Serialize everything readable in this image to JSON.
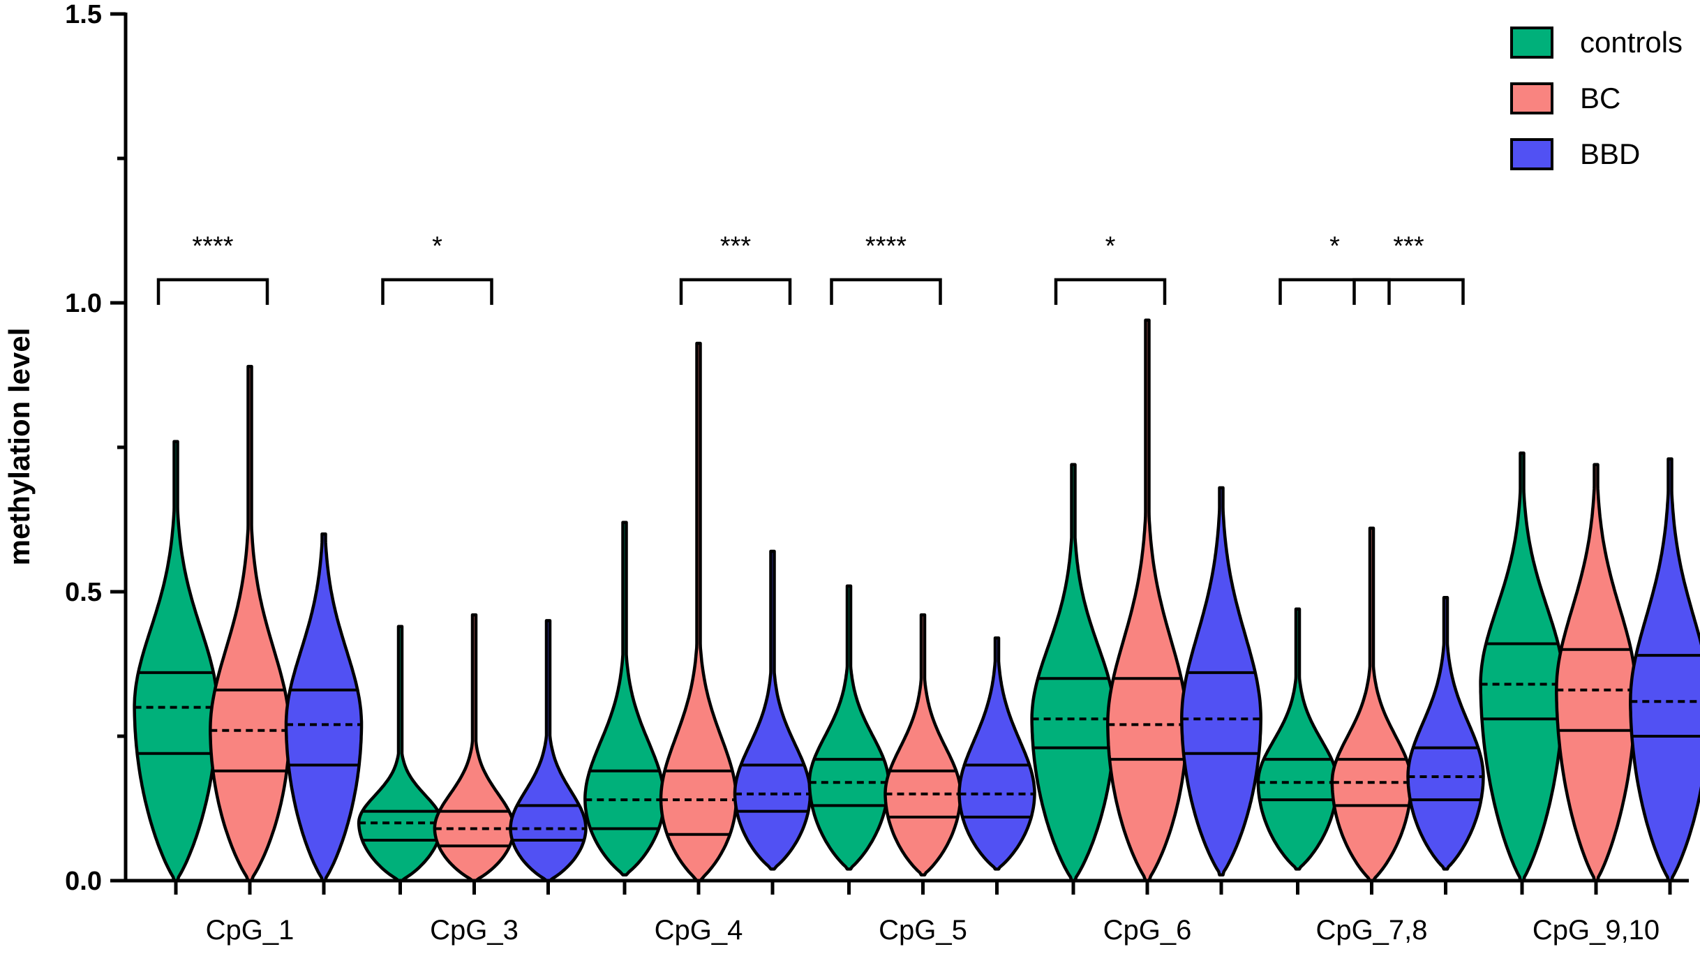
{
  "chart_data": {
    "type": "violin",
    "title": "",
    "xlabel": "",
    "ylabel": "methylation level",
    "ylim": [
      0,
      1.5
    ],
    "yticks_major": [
      0.0,
      0.5,
      1.0,
      1.5
    ],
    "ytick_labels": [
      "0.0",
      "0.5",
      "1.0",
      "1.5"
    ],
    "yticks_minor": [
      0.25,
      0.75,
      1.25
    ],
    "legend_position": "top-right",
    "series": [
      {
        "name": "controls",
        "color": "#00b07a"
      },
      {
        "name": "BC",
        "color": "#f98480"
      },
      {
        "name": "BBD",
        "color": "#5151f3"
      }
    ],
    "categories": [
      "CpG_1",
      "CpG_3",
      "CpG_4",
      "CpG_5",
      "CpG_6",
      "CpG_7,8",
      "CpG_9,10"
    ],
    "violins": [
      [
        {
          "series": "controls",
          "min": 0.0,
          "max": 0.76,
          "q1": 0.22,
          "median": 0.3,
          "q3": 0.36,
          "maxWidth": 0.22
        },
        {
          "series": "BC",
          "min": 0.0,
          "max": 0.89,
          "q1": 0.19,
          "median": 0.26,
          "q3": 0.33,
          "maxWidth": 0.21
        },
        {
          "series": "BBD",
          "min": 0.0,
          "max": 0.6,
          "q1": 0.2,
          "median": 0.27,
          "q3": 0.33,
          "maxWidth": 0.2
        }
      ],
      [
        {
          "series": "controls",
          "min": 0.0,
          "max": 0.44,
          "q1": 0.07,
          "median": 0.1,
          "q3": 0.12,
          "maxWidth": 0.22
        },
        {
          "series": "BC",
          "min": 0.0,
          "max": 0.46,
          "q1": 0.06,
          "median": 0.09,
          "q3": 0.12,
          "maxWidth": 0.21
        },
        {
          "series": "BBD",
          "min": 0.0,
          "max": 0.45,
          "q1": 0.07,
          "median": 0.09,
          "q3": 0.13,
          "maxWidth": 0.2
        }
      ],
      [
        {
          "series": "controls",
          "min": 0.01,
          "max": 0.62,
          "q1": 0.09,
          "median": 0.14,
          "q3": 0.19,
          "maxWidth": 0.21
        },
        {
          "series": "BC",
          "min": 0.0,
          "max": 0.93,
          "q1": 0.08,
          "median": 0.14,
          "q3": 0.19,
          "maxWidth": 0.2
        },
        {
          "series": "BBD",
          "min": 0.02,
          "max": 0.57,
          "q1": 0.12,
          "median": 0.15,
          "q3": 0.2,
          "maxWidth": 0.2
        }
      ],
      [
        {
          "series": "controls",
          "min": 0.02,
          "max": 0.51,
          "q1": 0.13,
          "median": 0.17,
          "q3": 0.21,
          "maxWidth": 0.21
        },
        {
          "series": "BC",
          "min": 0.01,
          "max": 0.46,
          "q1": 0.11,
          "median": 0.15,
          "q3": 0.19,
          "maxWidth": 0.2
        },
        {
          "series": "BBD",
          "min": 0.02,
          "max": 0.42,
          "q1": 0.11,
          "median": 0.15,
          "q3": 0.2,
          "maxWidth": 0.2
        }
      ],
      [
        {
          "series": "controls",
          "min": 0.0,
          "max": 0.72,
          "q1": 0.23,
          "median": 0.28,
          "q3": 0.35,
          "maxWidth": 0.22
        },
        {
          "series": "BC",
          "min": 0.0,
          "max": 0.97,
          "q1": 0.21,
          "median": 0.27,
          "q3": 0.35,
          "maxWidth": 0.21
        },
        {
          "series": "BBD",
          "min": 0.01,
          "max": 0.68,
          "q1": 0.22,
          "median": 0.28,
          "q3": 0.36,
          "maxWidth": 0.21
        }
      ],
      [
        {
          "series": "controls",
          "min": 0.02,
          "max": 0.47,
          "q1": 0.14,
          "median": 0.17,
          "q3": 0.21,
          "maxWidth": 0.21
        },
        {
          "series": "BC",
          "min": 0.0,
          "max": 0.61,
          "q1": 0.13,
          "median": 0.17,
          "q3": 0.21,
          "maxWidth": 0.21
        },
        {
          "series": "BBD",
          "min": 0.02,
          "max": 0.49,
          "q1": 0.14,
          "median": 0.18,
          "q3": 0.23,
          "maxWidth": 0.2
        }
      ],
      [
        {
          "series": "controls",
          "min": 0.0,
          "max": 0.74,
          "q1": 0.28,
          "median": 0.34,
          "q3": 0.41,
          "maxWidth": 0.22
        },
        {
          "series": "BC",
          "min": 0.0,
          "max": 0.72,
          "q1": 0.26,
          "median": 0.33,
          "q3": 0.4,
          "maxWidth": 0.21
        },
        {
          "series": "BBD",
          "min": 0.0,
          "max": 0.73,
          "q1": 0.25,
          "median": 0.31,
          "q3": 0.39,
          "maxWidth": 0.21
        }
      ]
    ],
    "significance": [
      {
        "category": "CpG_1",
        "from": "controls",
        "to": "BC",
        "label": "****"
      },
      {
        "category": "CpG_3",
        "from": "controls",
        "to": "BC",
        "label": "*"
      },
      {
        "category": "CpG_4",
        "from": "BC",
        "to": "BBD",
        "label": "***"
      },
      {
        "category": "CpG_5",
        "from": "controls",
        "to": "BC",
        "label": "****"
      },
      {
        "category": "CpG_6",
        "from": "controls",
        "to": "BC",
        "label": "*"
      },
      {
        "category": "CpG_7,8",
        "from": "controls",
        "to": "BC",
        "label": "*"
      },
      {
        "category": "CpG_7,8",
        "from": "BC",
        "to": "BBD",
        "label": "***"
      }
    ],
    "significance_bracket_y": 1.04
  }
}
